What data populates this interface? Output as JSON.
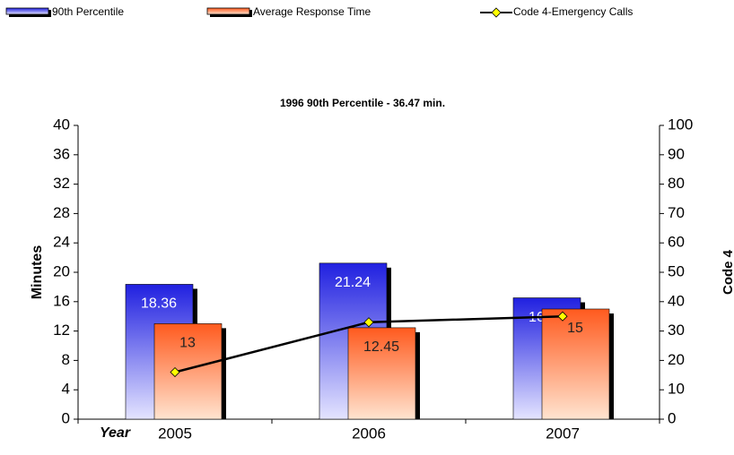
{
  "chart_data": {
    "type": "bar",
    "title": "1996 90th Percentile - 36.47 min.",
    "x_label": "Year",
    "y_label": "Minutes",
    "y2_label": "Code 4",
    "categories": [
      "2005",
      "2006",
      "2007"
    ],
    "series": [
      {
        "name": "90th Percentile",
        "color": "#2828e8",
        "values": [
          18.36,
          21.24,
          16.52
        ]
      },
      {
        "name": "Average Response Time",
        "color": "#ff6428",
        "values": [
          13,
          12.45,
          15
        ]
      },
      {
        "name": "Code 4-Emergency Calls",
        "type": "line",
        "axis": "y2",
        "color": "#000000",
        "marker_color": "#ffff00",
        "values": [
          16,
          33,
          35
        ]
      }
    ],
    "ylim": [
      0,
      40
    ],
    "yticks": [
      0,
      4,
      8,
      12,
      16,
      20,
      24,
      28,
      32,
      36,
      40
    ],
    "y2lim": [
      0,
      100
    ],
    "y2ticks": [
      0,
      10,
      20,
      30,
      40,
      50,
      60,
      70,
      80,
      90,
      100
    ],
    "legend": "top"
  }
}
